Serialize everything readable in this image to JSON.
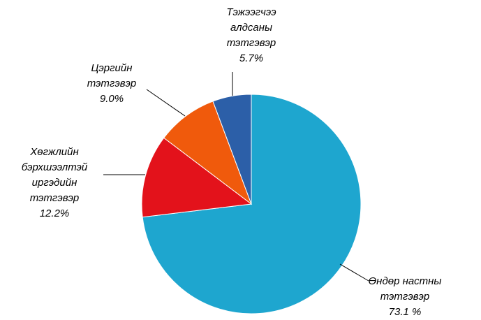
{
  "chart_data": {
    "type": "pie",
    "categories": [
      "Өндөр настны тэтгэвэр",
      "Хөгжлийн бэрхшээлтэй иргэдийн тэтгэвэр",
      "Цэргийн тэтгэвэр",
      "Тэжээгчээ алдсаны тэтгэвэр"
    ],
    "values": [
      73.1,
      12.2,
      9.0,
      5.7
    ],
    "value_labels": [
      "73.1 %",
      "12.2%",
      "9.0%",
      "5.7%"
    ],
    "colors": [
      "#1ea6cf",
      "#e3121b",
      "#f05a0c",
      "#2c5fa8"
    ]
  }
}
